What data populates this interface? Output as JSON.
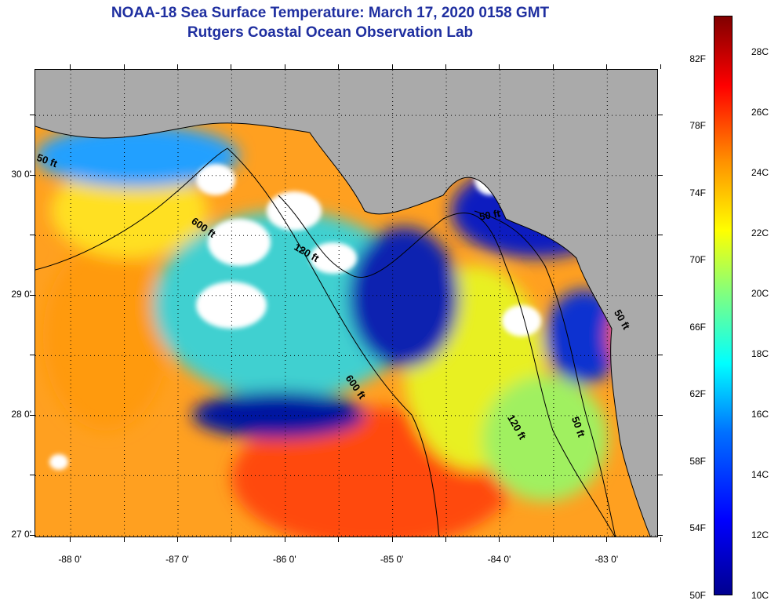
{
  "title": {
    "line1": "NOAA-18 Sea Surface Temperature:  March 17, 2020 0158 GMT",
    "line2": "Rutgers Coastal Ocean Observation Lab"
  },
  "map": {
    "lat_labels": [
      "30 0'",
      "29 0'",
      "28 0'",
      "27 0'"
    ],
    "lat_values": [
      30,
      29,
      28,
      27
    ],
    "lon_labels": [
      "-88 0'",
      "-87 0'",
      "-86 0'",
      "-85 0'",
      "-84 0'",
      "-83 0'"
    ],
    "lon_values": [
      -88,
      -87,
      -86,
      -85,
      -84,
      -83
    ],
    "lat_range": [
      26.98,
      30.88
    ],
    "lon_range": [
      -88.33,
      -82.52
    ],
    "contour_labels": [
      "50 ft",
      "600 ft",
      "120 ft",
      "50 ft",
      "600 ft",
      "120 ft",
      "50 ft",
      "50 ft"
    ],
    "land_color": "#aaaaaa",
    "cloud_color": "#ffffff"
  },
  "colorbar": {
    "fahrenheit_labels": [
      "82F",
      "78F",
      "74F",
      "70F",
      "66F",
      "62F",
      "58F",
      "54F",
      "50F"
    ],
    "fahrenheit_values": [
      82,
      78,
      74,
      70,
      66,
      62,
      58,
      54,
      50
    ],
    "celsius_labels": [
      "28C",
      "26C",
      "24C",
      "22C",
      "20C",
      "18C",
      "16C",
      "14C",
      "12C",
      "10C"
    ],
    "celsius_values": [
      28,
      26,
      24,
      22,
      20,
      18,
      16,
      14,
      12,
      10
    ],
    "range_celsius": [
      10,
      29.2
    ],
    "colors": [
      "#00008f",
      "#0000ff",
      "#0070ff",
      "#00ffff",
      "#80ff80",
      "#ffff00",
      "#ff9000",
      "#ff0000",
      "#800000"
    ]
  }
}
